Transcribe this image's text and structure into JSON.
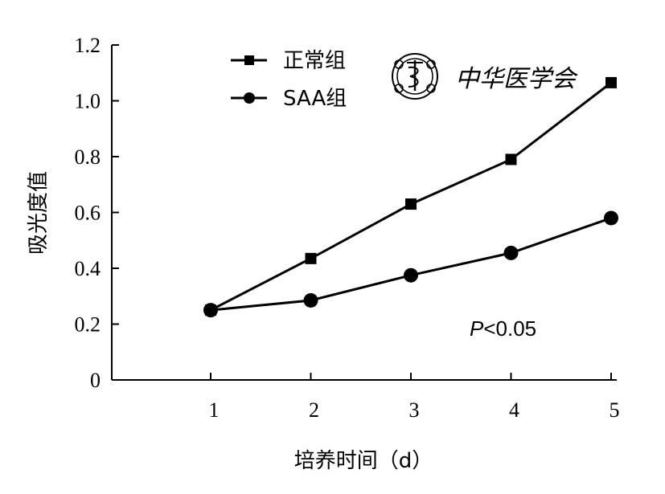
{
  "chart_data": {
    "type": "line",
    "xlabel": "培养时间（d）",
    "ylabel": "吸光度值",
    "x": [
      1,
      2,
      3,
      4,
      5
    ],
    "x_tick_labels": [
      "1",
      "2",
      "3",
      "4",
      "5"
    ],
    "ylim": [
      0,
      1.2
    ],
    "y_ticks": [
      0,
      0.2,
      0.4,
      0.6,
      0.8,
      1.0,
      1.2
    ],
    "y_tick_labels": [
      "0",
      "0.2",
      "0.4",
      "0.6",
      "0.8",
      "1.0",
      "1.2"
    ],
    "grid": false,
    "legend_position": "top-center",
    "series": [
      {
        "name": "正常组",
        "marker": "square",
        "values": [
          0.25,
          0.435,
          0.63,
          0.79,
          1.065
        ]
      },
      {
        "name": "SAA组",
        "marker": "circle",
        "values": [
          0.25,
          0.285,
          0.375,
          0.455,
          0.58
        ]
      }
    ],
    "annotation": {
      "italic_part": "P",
      "rest": "<0.05"
    },
    "line_color": "#000000"
  },
  "watermark": {
    "logo_icon": "journal-seal-icon",
    "text": "中华医学会"
  }
}
